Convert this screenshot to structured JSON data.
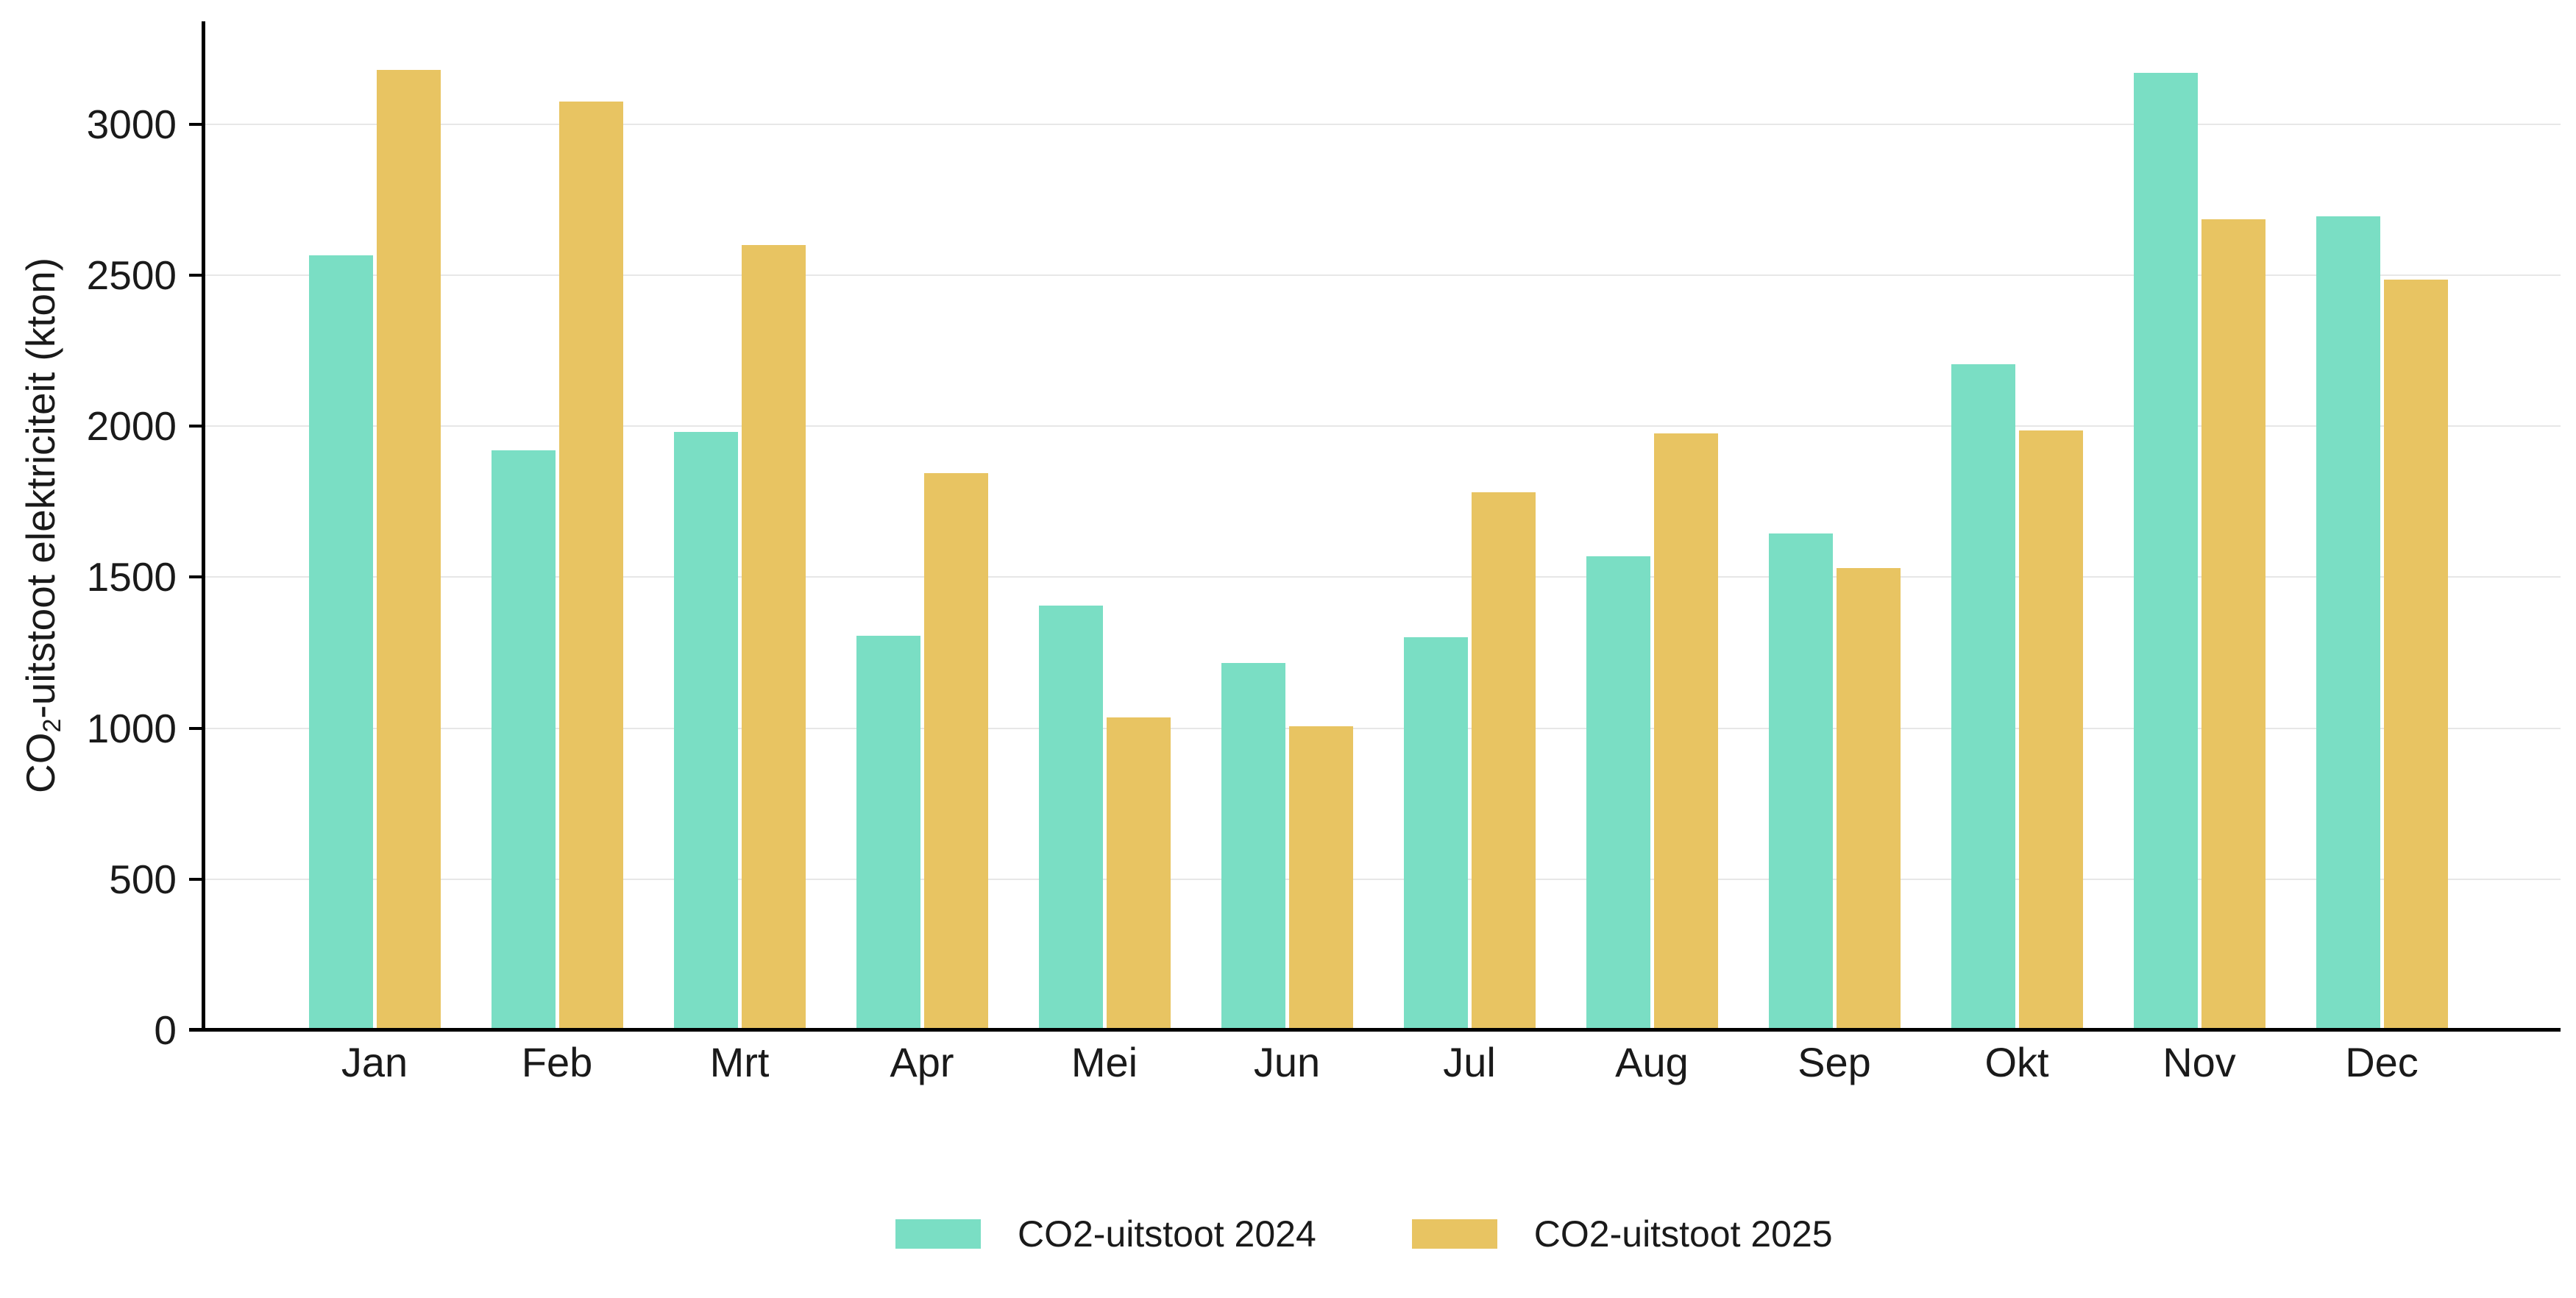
{
  "chart": {
    "y_title": {
      "prefix": "CO",
      "subscript": "2",
      "suffix": "-uitstoot elektriciteit (kton)"
    }
  },
  "chart_data": {
    "type": "bar",
    "title": "",
    "xlabel": "",
    "ylabel": "CO2-uitstoot elektriciteit (kton)",
    "categories": [
      "Jan",
      "Feb",
      "Mrt",
      "Apr",
      "Mei",
      "Jun",
      "Jul",
      "Aug",
      "Sep",
      "Okt",
      "Nov",
      "Dec"
    ],
    "series": [
      {
        "name": "CO2-uitstoot 2024",
        "color": "#7adec4",
        "values": [
          2565,
          1920,
          1980,
          1305,
          1405,
          1215,
          1300,
          1570,
          1645,
          2205,
          3170,
          2695
        ]
      },
      {
        "name": "CO2-uitstoot 2025",
        "color": "#e8c462",
        "values": [
          3180,
          3075,
          2600,
          1845,
          1035,
          1005,
          1780,
          1975,
          1530,
          1985,
          2685,
          2485
        ]
      }
    ],
    "ylim": [
      0,
      3340
    ],
    "yticks": [
      0,
      500,
      1000,
      1500,
      2000,
      2500,
      3000
    ],
    "grid": "horizontal",
    "gridline_color": "#e7e7e7",
    "axis_color": "#000000",
    "text_color": "#1a1a1a",
    "legend_position": "bottom"
  }
}
